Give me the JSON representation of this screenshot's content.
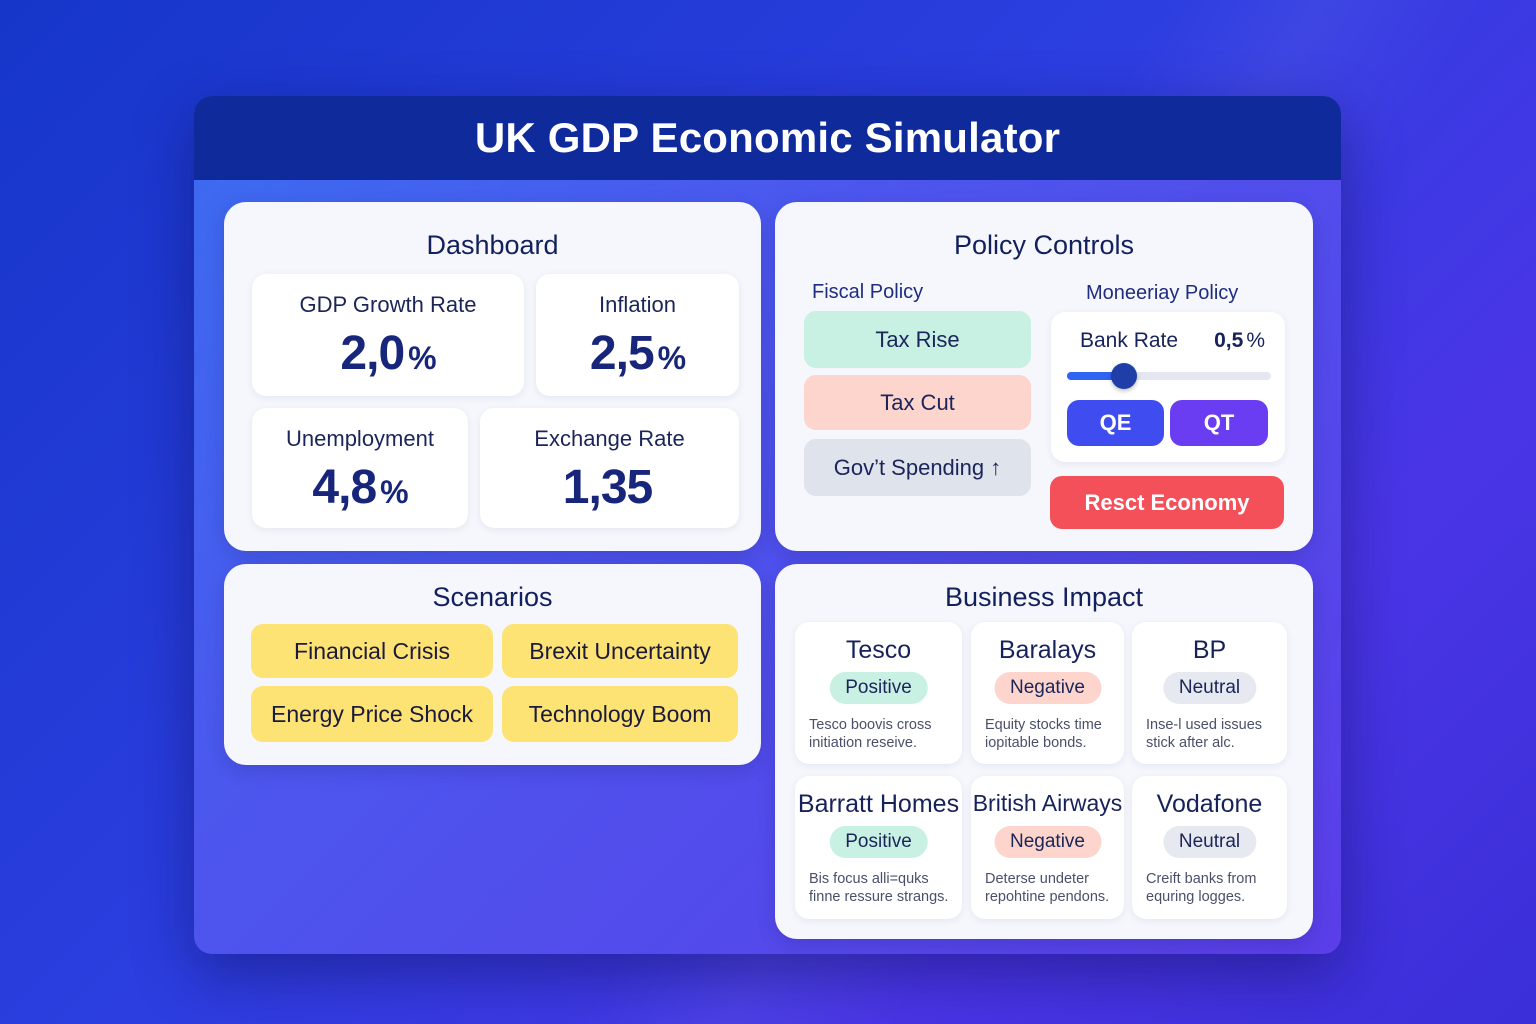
{
  "app": {
    "title": "UK GDP Economic Simulator"
  },
  "colors": {
    "title_bar": "#0f2a9a",
    "positive": "#c8f1e3",
    "negative": "#fdd5cc",
    "neutral": "#e6e9ef",
    "scenario": "#fde274",
    "reset": "#f4505a",
    "qe": "#3f4cf0",
    "qt": "#6a3cf2"
  },
  "dashboard": {
    "title": "Dashboard",
    "metrics": [
      {
        "label": "GDP Growth Rate",
        "value": "2,0",
        "unit": "%"
      },
      {
        "label": "Inflation",
        "value": "2,5",
        "unit": "%"
      },
      {
        "label": "Unemployment",
        "value": "4,8",
        "unit": "%"
      },
      {
        "label": "Exchange Rate",
        "value": "1,35",
        "unit": ""
      }
    ]
  },
  "policy": {
    "title": "Policy Controls",
    "fiscal": {
      "heading": "Fiscal Policy",
      "buttons": [
        "Tax Rise",
        "Tax Cut",
        "Gov’t Spending ↑"
      ]
    },
    "monetary": {
      "heading": "Moneeriay Policy",
      "bank_rate_label": "Bank Rate",
      "bank_rate_value": "0,5",
      "bank_rate_unit": "%",
      "bank_rate_slider_fraction": 0.28,
      "qe_label": "QE",
      "qt_label": "QT"
    },
    "reset_label": "Resct Economy"
  },
  "scenarios": {
    "title": "Scenarios",
    "items": [
      "Financial Crisis",
      "Brexit Uncertainty",
      "Energy Price Shock",
      "Technology Boom"
    ]
  },
  "business": {
    "title": "Business Impact",
    "companies": [
      {
        "name": "Tesco",
        "impact": "Positive",
        "status": "positive",
        "desc_1": "Tesco boovis cross",
        "desc_2": "initiation reseive."
      },
      {
        "name": "Baralays",
        "impact": "Negative",
        "status": "negative",
        "desc_1": "Equity stocks time",
        "desc_2": "iopitable bonds."
      },
      {
        "name": "BP",
        "impact": "Neutral",
        "status": "neutral",
        "desc_1": "Inse-l used issues",
        "desc_2": "stick after alc."
      },
      {
        "name": "Barratt Homes",
        "impact": "Positive",
        "status": "positive",
        "desc_1": "Bis focus alli=quks",
        "desc_2": "finne ressure strangs."
      },
      {
        "name": "British Airways",
        "impact": "Negative",
        "status": "negative",
        "desc_1": "Deterse undeter",
        "desc_2": "repohtine pendons."
      },
      {
        "name": "Vodafone",
        "impact": "Neutral",
        "status": "neutral",
        "desc_1": "Creift banks from",
        "desc_2": "equring logges."
      }
    ]
  }
}
